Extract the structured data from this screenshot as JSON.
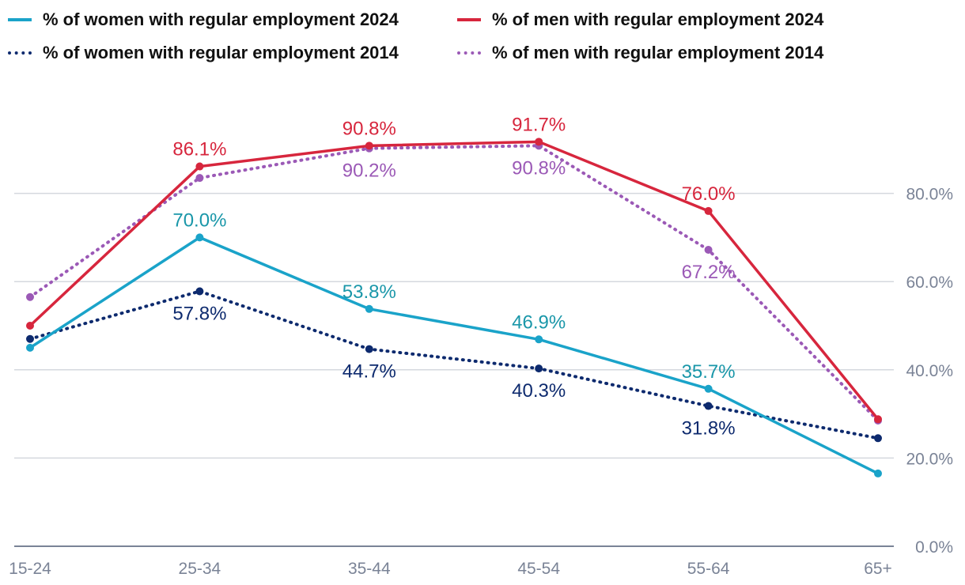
{
  "chart_data": {
    "type": "line",
    "categories": [
      "15-24",
      "25-34",
      "35-44",
      "45-54",
      "55-64",
      "65+"
    ],
    "ylim": [
      0,
      100
    ],
    "yticks": [
      0,
      20,
      40,
      60,
      80
    ],
    "ytick_labels": [
      "0.0%",
      "20.0%",
      "40.0%",
      "60.0%",
      "80.0%"
    ],
    "grid": true,
    "legend_position": "top",
    "series": [
      {
        "name": "% of women with regular employment 2024",
        "color": "#1aa3c9",
        "style": "solid",
        "values": [
          45.0,
          70.0,
          53.8,
          46.9,
          35.7,
          16.5
        ],
        "labels": [
          null,
          "70.0%",
          "53.8%",
          "46.9%",
          "35.7%",
          null
        ],
        "label_color": "#1a97a9",
        "label_pos": [
          null,
          "above",
          "above",
          "above",
          "above",
          null
        ]
      },
      {
        "name": "% of men with regular employment 2024",
        "color": "#d7263d",
        "style": "solid",
        "values": [
          50.0,
          86.1,
          90.8,
          91.7,
          76.0,
          28.8
        ],
        "labels": [
          null,
          "86.1%",
          "90.8%",
          "91.7%",
          "76.0%",
          null
        ],
        "label_color": "#d7263d",
        "label_pos": [
          null,
          "above",
          "above",
          "above",
          "above",
          null
        ]
      },
      {
        "name": "% of women with regular employment 2014",
        "color": "#0d2a6e",
        "style": "dotted",
        "values": [
          47.0,
          57.8,
          44.7,
          40.3,
          31.8,
          24.5
        ],
        "labels": [
          null,
          "57.8%",
          "44.7%",
          "40.3%",
          "31.8%",
          null
        ],
        "label_color": "#0d2a6e",
        "label_pos": [
          null,
          "below",
          "below",
          "below",
          "below",
          null
        ]
      },
      {
        "name": "% of men with regular employment 2014",
        "color": "#9b59b6",
        "style": "dotted",
        "values": [
          56.5,
          83.5,
          90.2,
          90.8,
          67.2,
          28.5
        ],
        "labels": [
          null,
          null,
          "90.2%",
          "90.8%",
          "67.2%",
          null
        ],
        "label_color": "#9b59b6",
        "label_pos": [
          null,
          null,
          "below",
          "below",
          "below",
          null
        ]
      }
    ]
  }
}
